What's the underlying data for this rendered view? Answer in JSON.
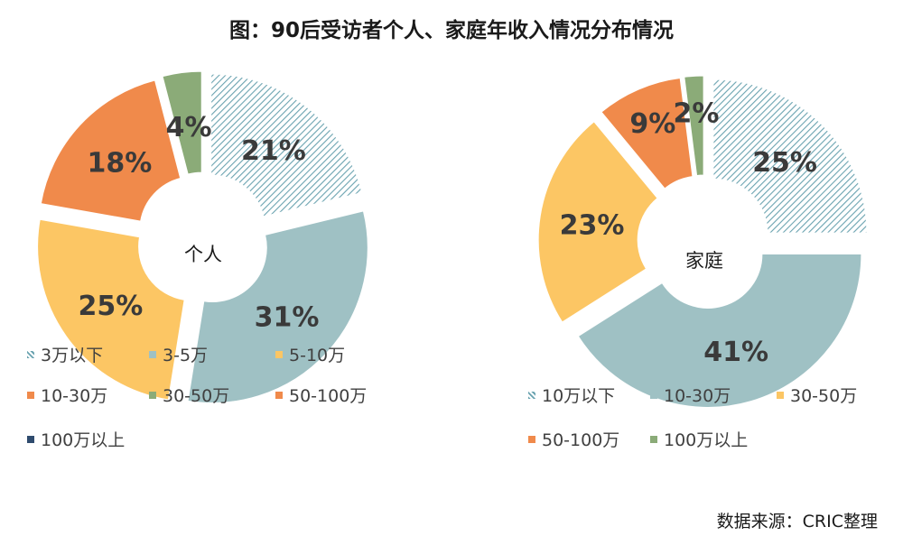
{
  "title": "图：90后受访者个人、家庭年收入情况分布情况",
  "source": "数据来源：CRIC整理",
  "colors": {
    "hatch": "#6aa3b0",
    "teal": "#9fc1c4",
    "yellow": "#fcc664",
    "orange": "#f08a4b",
    "green": "#8bab78",
    "navy": "#2f4b6e",
    "label": "#3a3a3a"
  },
  "chart_data": [
    {
      "type": "pie",
      "variant": "exploded-doughnut",
      "center_label": "个人",
      "categories": [
        "3万以下",
        "3-5万",
        "5-10万",
        "10-30万",
        "30-50万",
        "50-100万",
        "100万以上"
      ],
      "values": [
        21,
        31,
        25,
        18,
        4,
        0,
        0
      ],
      "value_labels": [
        "21%",
        "31%",
        "25%",
        "18%",
        "4%",
        "",
        ""
      ],
      "series_colors": [
        "hatch",
        "teal",
        "yellow",
        "orange",
        "green",
        "orange",
        "navy"
      ],
      "legend": [
        "3万以下",
        "3-5万",
        "5-10万",
        "10-30万",
        "30-50万",
        "50-100万",
        "100万以上"
      ]
    },
    {
      "type": "pie",
      "variant": "exploded-doughnut",
      "center_label": "家庭",
      "categories": [
        "10万以下",
        "10-30万",
        "30-50万",
        "50-100万",
        "100万以上"
      ],
      "values": [
        25,
        41,
        23,
        9,
        2
      ],
      "value_labels": [
        "25%",
        "41%",
        "23%",
        "9%",
        "2%"
      ],
      "series_colors": [
        "hatch",
        "teal",
        "yellow",
        "orange",
        "green"
      ],
      "legend": [
        "10万以下",
        "10-30万",
        "30-50万",
        "50-100万",
        "100万以上"
      ]
    }
  ]
}
